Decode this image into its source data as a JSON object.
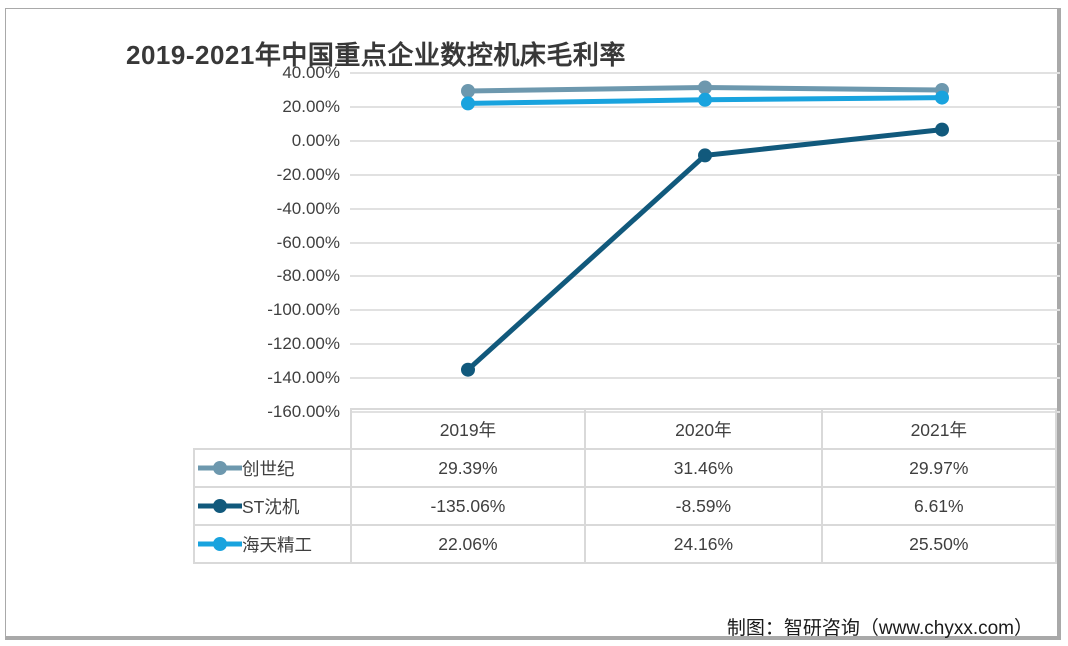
{
  "title": "2019-2021年中国重点企业数控机床毛利率",
  "footer": "制图：智研咨询（www.chyxx.com）",
  "colors": {
    "grid": "#e1e1e1",
    "table_border": "#d9d9d9",
    "frame_border": "#a9a9a9",
    "title_text": "#383838",
    "body_text": "#3f3f3f"
  },
  "chart_data": {
    "type": "line",
    "title": "2019-2021年中国重点企业数控机床毛利率",
    "categories": [
      "2019年",
      "2020年",
      "2021年"
    ],
    "series": [
      {
        "name": "创世纪",
        "color": "#6d98ae",
        "values": [
          29.39,
          31.46,
          29.97
        ],
        "labels": [
          "29.39%",
          "31.46%",
          "29.97%"
        ]
      },
      {
        "name": "ST沈机",
        "color": "#11597c",
        "values": [
          -135.06,
          -8.59,
          6.61
        ],
        "labels": [
          "-135.06%",
          "-8.59%",
          "6.61%"
        ]
      },
      {
        "name": "海天精工",
        "color": "#19a3de",
        "values": [
          22.06,
          24.16,
          25.5
        ],
        "labels": [
          "22.06%",
          "24.16%",
          "25.50%"
        ]
      }
    ],
    "ylim": [
      -160,
      40
    ],
    "ytick_step": 20,
    "yticks": [
      "40.00%",
      "20.00%",
      "0.00%",
      "-20.00%",
      "-40.00%",
      "-60.00%",
      "-80.00%",
      "-100.00%",
      "-120.00%",
      "-140.00%",
      "-160.00%"
    ],
    "grid": true,
    "legend_position": "table-left-column",
    "marker": "circle"
  }
}
